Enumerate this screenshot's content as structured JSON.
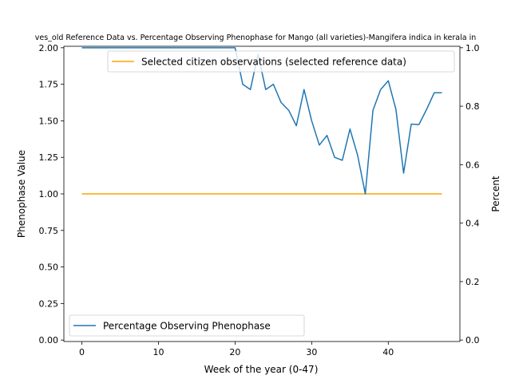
{
  "chart_data": {
    "type": "line",
    "title": "ves_old Reference Data vs. Percentage Observing Phenophase for Mango (all varieties)-Mangifera indica in kerala in",
    "xlabel": "Week of the year (0-47)",
    "ylabel_left": "Phenophase Value",
    "ylabel_right": "Percent",
    "xlim": [
      -2.35,
      49.35
    ],
    "ylim_left": [
      -0.01,
      2.01
    ],
    "ylim_right": [
      -0.005,
      1.005
    ],
    "x_ticks": [
      0,
      10,
      20,
      30,
      40
    ],
    "y_ticks_left": [
      "0.00",
      "0.25",
      "0.50",
      "0.75",
      "1.00",
      "1.25",
      "1.50",
      "1.75",
      "2.00"
    ],
    "y_ticks_right": [
      "0.0",
      "0.2",
      "0.4",
      "0.6",
      "0.8",
      "1.0"
    ],
    "grid": false,
    "series": [
      {
        "name": "Selected citizen observations (selected reference data)",
        "axis": "left",
        "color": "#ffa500",
        "legend_position": "upper-right",
        "x": [
          0,
          47
        ],
        "y": [
          1.0,
          1.0
        ]
      },
      {
        "name": "Percentage Observing Phenophase",
        "axis": "right",
        "color": "#1f77b4",
        "legend_position": "lower-left",
        "x": [
          0,
          1,
          2,
          3,
          4,
          5,
          6,
          7,
          8,
          9,
          10,
          11,
          12,
          13,
          14,
          15,
          16,
          17,
          18,
          19,
          20,
          21,
          22,
          23,
          24,
          25,
          26,
          27,
          28,
          29,
          30,
          31,
          32,
          33,
          34,
          35,
          36,
          37,
          38,
          39,
          40,
          41,
          42,
          43,
          44,
          45,
          46,
          47
        ],
        "y": [
          1.0,
          1.0,
          1.0,
          1.0,
          1.0,
          1.0,
          1.0,
          1.0,
          1.0,
          1.0,
          1.0,
          1.0,
          1.0,
          1.0,
          1.0,
          1.0,
          1.0,
          1.0,
          1.0,
          1.0,
          1.0,
          0.875,
          0.857,
          0.978,
          0.857,
          0.875,
          0.813,
          0.786,
          0.733,
          0.857,
          0.75,
          0.667,
          0.7,
          0.625,
          0.615,
          0.722,
          0.632,
          0.5,
          0.786,
          0.857,
          0.887,
          0.789,
          0.571,
          0.739,
          0.737,
          0.789,
          0.846,
          0.846
        ]
      }
    ]
  }
}
